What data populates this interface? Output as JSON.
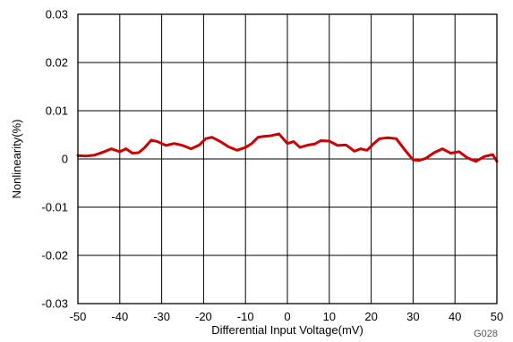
{
  "chart_data": {
    "type": "line",
    "title": "",
    "xlabel": "Differential Input Voltage(mV)",
    "ylabel": "Nonlinearity(%)",
    "xlim": [
      -50,
      50
    ],
    "ylim": [
      -0.03,
      0.03
    ],
    "x_ticks": [
      -50,
      -40,
      -30,
      -20,
      -10,
      0,
      10,
      20,
      30,
      40,
      50
    ],
    "y_ticks": [
      -0.03,
      -0.02,
      -0.01,
      0,
      0.01,
      0.02,
      0.03
    ],
    "x_tick_labels": [
      "-50",
      "-40",
      "-30",
      "-20",
      "-10",
      "0",
      "10",
      "20",
      "30",
      "40",
      "50"
    ],
    "y_tick_labels": [
      "-0.03",
      "-0.02",
      "-0.01",
      "0",
      "0.01",
      "0.02",
      "0.03"
    ],
    "grid": true,
    "figure_id": "G028",
    "series": [
      {
        "color": "#cc0000",
        "x": [
          -50,
          -48,
          -46,
          -44,
          -42,
          -40,
          -38.5,
          -37,
          -35.5,
          -34,
          -32.5,
          -31,
          -29,
          -27,
          -25,
          -23,
          -21,
          -19.5,
          -18,
          -16,
          -14,
          -12,
          -10,
          -8.5,
          -7,
          -5.5,
          -4,
          -2,
          0,
          1.5,
          3,
          5,
          6.5,
          8,
          10,
          12,
          14,
          16,
          17.5,
          19,
          20.5,
          22,
          24,
          26,
          28,
          30,
          31.5,
          33,
          35,
          37,
          39,
          41,
          43,
          45,
          47,
          49,
          50
        ],
        "y": [
          0.0007,
          0.0006,
          0.0008,
          0.0014,
          0.0021,
          0.0015,
          0.0021,
          0.0012,
          0.0013,
          0.0024,
          0.0039,
          0.0036,
          0.0028,
          0.0032,
          0.0028,
          0.0021,
          0.0029,
          0.0042,
          0.0045,
          0.0036,
          0.0025,
          0.0018,
          0.0024,
          0.0032,
          0.0045,
          0.0047,
          0.0048,
          0.0052,
          0.0032,
          0.0036,
          0.0024,
          0.0029,
          0.0031,
          0.0038,
          0.0037,
          0.0028,
          0.0029,
          0.0016,
          0.0021,
          0.0018,
          0.0031,
          0.0042,
          0.0044,
          0.0042,
          0.0019,
          -0.0002,
          -0.0003,
          0.0001,
          0.0013,
          0.0021,
          0.0012,
          0.0015,
          0.0002,
          -0.0005,
          0.0005,
          0.0009,
          -0.0005
        ]
      }
    ]
  }
}
